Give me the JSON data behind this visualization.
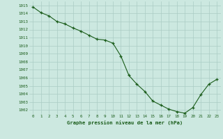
{
  "x": [
    0,
    1,
    2,
    3,
    4,
    5,
    6,
    7,
    8,
    9,
    10,
    11,
    12,
    13,
    14,
    15,
    16,
    17,
    18,
    19,
    20,
    21,
    22,
    23
  ],
  "y": [
    1014.8,
    1014.1,
    1013.7,
    1013.0,
    1012.7,
    1012.2,
    1011.8,
    1011.3,
    1010.8,
    1010.7,
    1010.3,
    1008.7,
    1006.3,
    1005.2,
    1004.3,
    1003.1,
    1002.6,
    1002.1,
    1001.8,
    1001.6,
    1002.3,
    1003.9,
    1005.2,
    1005.8
  ],
  "line_color": "#1a5c1a",
  "marker_color": "#1a5c1a",
  "bg_color": "#cce8e0",
  "grid_color": "#aaccc4",
  "xlabel": "Graphe pression niveau de la mer (hPa)",
  "xlabel_color": "#1a5c1a",
  "tick_color": "#1a5c1a",
  "ylim": [
    1001.5,
    1015.5
  ],
  "yticks": [
    1002,
    1003,
    1004,
    1005,
    1006,
    1007,
    1008,
    1009,
    1010,
    1011,
    1012,
    1013,
    1014,
    1015
  ],
  "xticks": [
    0,
    1,
    2,
    3,
    4,
    5,
    6,
    7,
    8,
    9,
    10,
    11,
    12,
    13,
    14,
    15,
    16,
    17,
    18,
    19,
    20,
    21,
    22,
    23
  ],
  "xtick_labels": [
    "0",
    "1",
    "2",
    "3",
    "4",
    "5",
    "6",
    "7",
    "8",
    "9",
    "10",
    "11",
    "12",
    "13",
    "14",
    "15",
    "16",
    "17",
    "18",
    "19",
    "20",
    "21",
    "22",
    "23"
  ]
}
